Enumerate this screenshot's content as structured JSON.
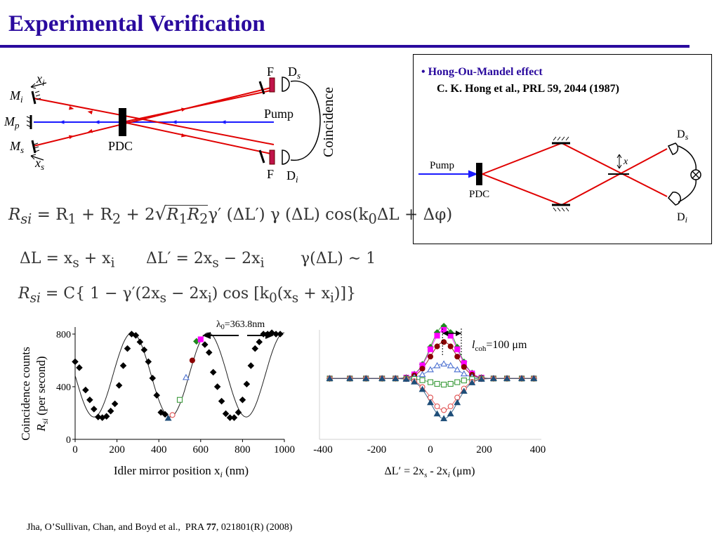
{
  "slide": {
    "title": "Experimental Verification",
    "footer": {
      "authors": "Jha, O’Sullivan, Chan, and Boyd et al.,",
      "journal": "PRA",
      "volume": "77",
      "rest": ", 021801(R)  (2008)"
    }
  },
  "setup_diagram": {
    "labels": {
      "xi": "x",
      "xi_sub": "i",
      "mi": "M",
      "mi_sub": "i",
      "mp": "M",
      "mp_sub": "p",
      "ms": "M",
      "ms_sub": "s",
      "xs": "x",
      "xs_sub": "s",
      "pdc": "PDC",
      "pump": "Pump",
      "f_top": "F",
      "f_bottom": "F",
      "ds": "D",
      "ds_sub": "s",
      "di": "D",
      "di_sub": "i",
      "coincidence": "Coincidence"
    },
    "colors": {
      "pump": "#1a1aff",
      "photons": "#e00000",
      "filter": "#c0144a"
    }
  },
  "equations": {
    "rsi_full": {
      "lhs": "R",
      "lhs_sub": "si",
      "p1": "= R",
      "s1": "1",
      "p2": " + R",
      "s2": "2",
      "p3": " + 2",
      "root_r1": "R",
      "root_s1": "1",
      "root_r2": "R",
      "root_s2": "2",
      "p4": "γ′ (ΔL′) γ (ΔL) cos(k",
      "s4": "0",
      "p5": "ΔL + Δφ)"
    },
    "delta_l": {
      "a": "ΔL = x",
      "a_s": "s",
      "b": " + x",
      "b_s": "i"
    },
    "delta_l_prime": {
      "a": "ΔL′ = 2x",
      "a_s": "s",
      "b": " − 2x",
      "b_s": "i"
    },
    "gamma": {
      "text": "γ(ΔL) ∼ 1"
    },
    "rsi_approx": {
      "lhs": "R",
      "lhs_sub": "si",
      "p1": "= C{  1 − γ′(2x",
      "s1": "s",
      "p2": " − 2x",
      "s2": "i",
      "p3": ") cos [k",
      "s3": "0",
      "p4": "(x",
      "s4": "s",
      "p5": " + x",
      "s5": "i",
      "p6": ")]}"
    }
  },
  "hom_panel": {
    "title": "• Hong-Ou-Mandel effect",
    "reference": "C. K. Hong et al., PRL  59, 2044 (1987)",
    "labels": {
      "pump": "Pump",
      "pdc": "PDC",
      "x": "x",
      "ds": "D",
      "ds_sub": "s",
      "di": "D",
      "di_sub": "i"
    }
  },
  "chart_data": [
    {
      "type": "scatter",
      "xlabel": "Idler mirror position x",
      "xlabel_sub": "i",
      "xlabel_unit": " (nm)",
      "ylabel_line1": "Coincidence counts",
      "ylabel_r": "R",
      "ylabel_sub": "si",
      "ylabel_unit": " (per second)",
      "xlim": [
        0,
        1000
      ],
      "ylim": [
        0,
        800
      ],
      "xticks": [
        0,
        200,
        400,
        600,
        800,
        1000
      ],
      "yticks": [
        0,
        400,
        800
      ],
      "annotation": "λ",
      "annotation_sub": "0",
      "annotation_rest": "=363.8nm",
      "fit_curve": {
        "offset": 490,
        "amplitude": 320,
        "period": 363.8,
        "peak_at": 272
      },
      "series": [
        {
          "marker": "filled-diamond",
          "color": "#000000",
          "x": [
            0,
            20,
            50,
            70,
            90,
            110,
            130,
            150,
            170,
            190,
            210,
            230,
            250,
            270,
            290,
            310,
            330,
            350,
            370,
            390,
            410,
            430,
            620,
            640,
            660,
            680,
            700,
            720,
            740,
            760,
            780,
            800,
            820,
            840,
            860,
            880,
            900,
            920,
            940,
            960,
            980
          ],
          "y": [
            590,
            545,
            375,
            300,
            230,
            170,
            165,
            175,
            215,
            270,
            410,
            560,
            690,
            800,
            790,
            740,
            680,
            590,
            465,
            335,
            205,
            190,
            720,
            660,
            510,
            400,
            290,
            195,
            165,
            165,
            205,
            300,
            420,
            560,
            690,
            740,
            800,
            800,
            810,
            800,
            800
          ]
        },
        {
          "marker": "filled-triangle",
          "color": "#1f4e79",
          "x": [
            445
          ],
          "y": [
            160
          ]
        },
        {
          "marker": "open-circle",
          "color": "#e05050",
          "x": [
            465
          ],
          "y": [
            185
          ]
        },
        {
          "marker": "open-square",
          "color": "#3a9a3a",
          "x": [
            500
          ],
          "y": [
            300
          ]
        },
        {
          "marker": "open-triangle",
          "color": "#4a6fd0",
          "x": [
            530
          ],
          "y": [
            470
          ]
        },
        {
          "marker": "filled-circle",
          "color": "#8b0000",
          "x": [
            560
          ],
          "y": [
            600
          ]
        },
        {
          "marker": "filled-diamond",
          "color": "#1e8a1e",
          "x": [
            580
          ],
          "y": [
            745
          ]
        },
        {
          "marker": "filled-square",
          "color": "#ff00ff",
          "x": [
            600
          ],
          "y": [
            760
          ]
        }
      ]
    },
    {
      "type": "line",
      "xlabel": "ΔL′ = 2x",
      "xlabel_s1": "s",
      "xlabel_mid": " - 2x",
      "xlabel_s2": "i",
      "xlabel_unit": "  (μm)",
      "xlim": [
        -400,
        400
      ],
      "xticks": [
        -400,
        -200,
        0,
        200,
        400
      ],
      "annotation": "l",
      "annotation_sub": "coh",
      "annotation_rest": "=100 μm",
      "baseline": 0.5,
      "center": 50,
      "width": 70,
      "series": [
        {
          "marker": "filled-diamond",
          "color": "#1e8a1e",
          "amp": 0.43
        },
        {
          "marker": "filled-square",
          "color": "#ff00ff",
          "amp": 0.4
        },
        {
          "marker": "filled-circle",
          "color": "#8b0000",
          "amp": 0.3
        },
        {
          "marker": "open-triangle",
          "color": "#4a6fd0",
          "amp": 0.12
        },
        {
          "marker": "open-square",
          "color": "#3a9a3a",
          "amp": -0.05
        },
        {
          "marker": "open-circle",
          "color": "#e05050",
          "amp": -0.26
        },
        {
          "marker": "filled-triangle",
          "color": "#1f4e79",
          "amp": -0.33
        }
      ],
      "x_points": [
        -375,
        -300,
        -240,
        -180,
        -130,
        -90,
        -60,
        -30,
        0,
        25,
        50,
        75,
        100,
        125,
        155,
        190,
        235,
        285,
        340,
        385
      ]
    }
  ]
}
